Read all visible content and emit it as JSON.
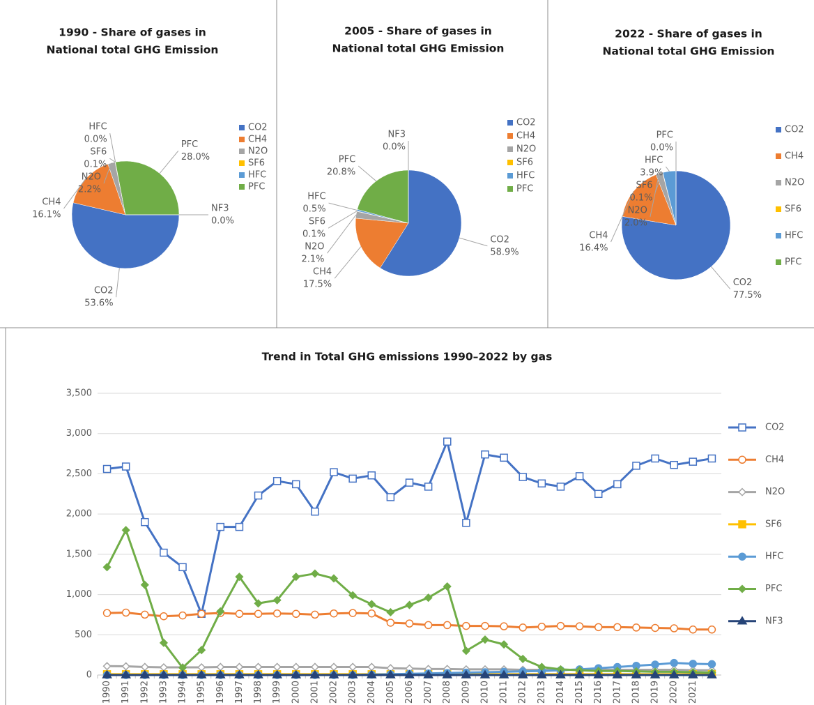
{
  "chart_data": [
    {
      "type": "pie",
      "title": [
        "1990 - Share of gases in",
        "National total GHG Emission"
      ],
      "categories": [
        "CO2",
        "CH4",
        "N2O",
        "SF6",
        "HFC",
        "PFC",
        "NF3"
      ],
      "values": [
        53.6,
        16.1,
        2.2,
        0.1,
        0.0,
        28.0,
        0.0
      ],
      "value_labels": [
        "53.6%",
        "16.1%",
        "2.2%",
        "0.1%",
        "0.0%",
        "28.0%",
        "0.0%"
      ],
      "colors": [
        "#4472c4",
        "#ed7d31",
        "#a5a5a5",
        "#ffc000",
        "#5b9bd5",
        "#70ad47",
        "#264478"
      ],
      "legend": [
        "CO2",
        "CH4",
        "N2O",
        "SF6",
        "HFC",
        "PFC"
      ],
      "start_angle": 90
    },
    {
      "type": "pie",
      "title": [
        "2005 - Share of gases in",
        "National total GHG Emission"
      ],
      "categories": [
        "CO2",
        "CH4",
        "N2O",
        "SF6",
        "HFC",
        "PFC",
        "NF3"
      ],
      "values": [
        58.9,
        17.5,
        2.1,
        0.1,
        0.5,
        20.8,
        0.0
      ],
      "value_labels": [
        "58.9%",
        "17.5%",
        "2.1%",
        "0.1%",
        "0.5%",
        "20.8%",
        "0.0%"
      ],
      "colors": [
        "#4472c4",
        "#ed7d31",
        "#a5a5a5",
        "#ffc000",
        "#5b9bd5",
        "#70ad47",
        "#264478"
      ],
      "legend": [
        "CO2",
        "CH4",
        "N2O",
        "SF6",
        "HFC",
        "PFC"
      ],
      "start_angle": 0
    },
    {
      "type": "pie",
      "title": [
        "2022 - Share of gases in",
        "National total GHG Emission"
      ],
      "categories": [
        "CO2",
        "CH4",
        "N2O",
        "SF6",
        "HFC",
        "PFC"
      ],
      "values": [
        77.5,
        16.4,
        2.0,
        0.1,
        3.9,
        0.0
      ],
      "value_labels": [
        "77.5%",
        "16.4%",
        "2.0%",
        "0.1%",
        "3.9%",
        "0.0%"
      ],
      "colors": [
        "#4472c4",
        "#ed7d31",
        "#a5a5a5",
        "#ffc000",
        "#5b9bd5",
        "#70ad47"
      ],
      "legend": [
        "CO2",
        "CH4",
        "N2O",
        "SF6",
        "HFC",
        "PFC"
      ],
      "start_angle": 0
    },
    {
      "type": "line",
      "title": "Trend in Total GHG emissions 1990–2022 by gas",
      "categories": [
        "1990",
        "1991",
        "1992",
        "1993",
        "1994",
        "1995",
        "1996",
        "1997",
        "1998",
        "1999",
        "2000",
        "2001",
        "2002",
        "2003",
        "2004",
        "2005",
        "2006",
        "2007",
        "2008",
        "2009",
        "2010",
        "2011",
        "2012",
        "2013",
        "2014",
        "2015",
        "2016",
        "2017",
        "2018",
        "2019",
        "2020",
        "2021",
        null
      ],
      "ylim": [
        0,
        3500
      ],
      "yticks": [
        0,
        500,
        {
          "value": 1000,
          "label": "1,000"
        },
        {
          "value": 1500,
          "label": "1,500"
        },
        {
          "value": 2000,
          "label": "2,000"
        },
        {
          "value": 2500,
          "label": "2,500"
        },
        {
          "value": 3000,
          "label": "3,000"
        },
        {
          "value": 3500,
          "label": "3,500"
        }
      ],
      "grid": true,
      "series": [
        {
          "name": "CO2",
          "color": "#4472c4",
          "marker": "square",
          "filled": false,
          "values": [
            2560,
            2590,
            1900,
            1520,
            1340,
            760,
            1840,
            1840,
            2230,
            2410,
            2370,
            2030,
            2520,
            2440,
            2480,
            2210,
            2390,
            2340,
            2900,
            1890,
            2740,
            2700,
            2460,
            2380,
            2340,
            2470,
            2250,
            2370,
            2600,
            2690,
            2610,
            2650,
            2690
          ]
        },
        {
          "name": "CH4",
          "color": "#ed7d31",
          "marker": "circle",
          "filled": false,
          "values": [
            770,
            775,
            750,
            730,
            740,
            760,
            770,
            760,
            760,
            765,
            760,
            750,
            765,
            770,
            765,
            650,
            640,
            620,
            620,
            610,
            610,
            605,
            590,
            600,
            610,
            605,
            595,
            595,
            590,
            585,
            580,
            565,
            565
          ]
        },
        {
          "name": "N2O",
          "color": "#a5a5a5",
          "marker": "diamond",
          "filled": false,
          "values": [
            110,
            108,
            100,
            95,
            95,
            95,
            100,
            100,
            100,
            100,
            100,
            100,
            100,
            100,
            100,
            85,
            80,
            75,
            75,
            70,
            70,
            70,
            65,
            65,
            65,
            65,
            65,
            65,
            65,
            65,
            65,
            60,
            60
          ]
        },
        {
          "name": "SF6",
          "color": "#ffc000",
          "marker": "square",
          "filled": true,
          "values": [
            10,
            10,
            10,
            10,
            10,
            10,
            10,
            10,
            10,
            10,
            10,
            10,
            10,
            10,
            10,
            10,
            10,
            10,
            10,
            10,
            10,
            10,
            10,
            10,
            10,
            10,
            10,
            10,
            10,
            10,
            10,
            10,
            10
          ]
        },
        {
          "name": "HFC",
          "color": "#5b9bd5",
          "marker": "circle",
          "filled": true,
          "values": [
            0,
            0,
            0,
            0,
            0,
            0,
            0,
            0,
            0,
            0,
            0,
            0,
            0,
            0,
            5,
            10,
            15,
            20,
            25,
            30,
            35,
            40,
            45,
            50,
            60,
            70,
            85,
            100,
            115,
            130,
            150,
            140,
            135
          ]
        },
        {
          "name": "PFC",
          "color": "#70ad47",
          "marker": "diamond",
          "filled": true,
          "values": [
            1340,
            1800,
            1120,
            400,
            90,
            310,
            790,
            1220,
            890,
            930,
            1220,
            1260,
            1200,
            990,
            880,
            780,
            870,
            960,
            1100,
            300,
            440,
            380,
            200,
            100,
            70,
            60,
            50,
            50,
            45,
            40,
            40,
            35,
            30
          ]
        },
        {
          "name": "NF3",
          "color": "#264478",
          "marker": "triangle",
          "filled": true,
          "values": [
            0,
            0,
            0,
            0,
            0,
            0,
            0,
            0,
            0,
            0,
            0,
            0,
            0,
            0,
            0,
            0,
            0,
            0,
            0,
            0,
            0,
            0,
            0,
            0,
            0,
            0,
            0,
            0,
            0,
            0,
            0,
            0,
            0
          ]
        }
      ]
    }
  ]
}
